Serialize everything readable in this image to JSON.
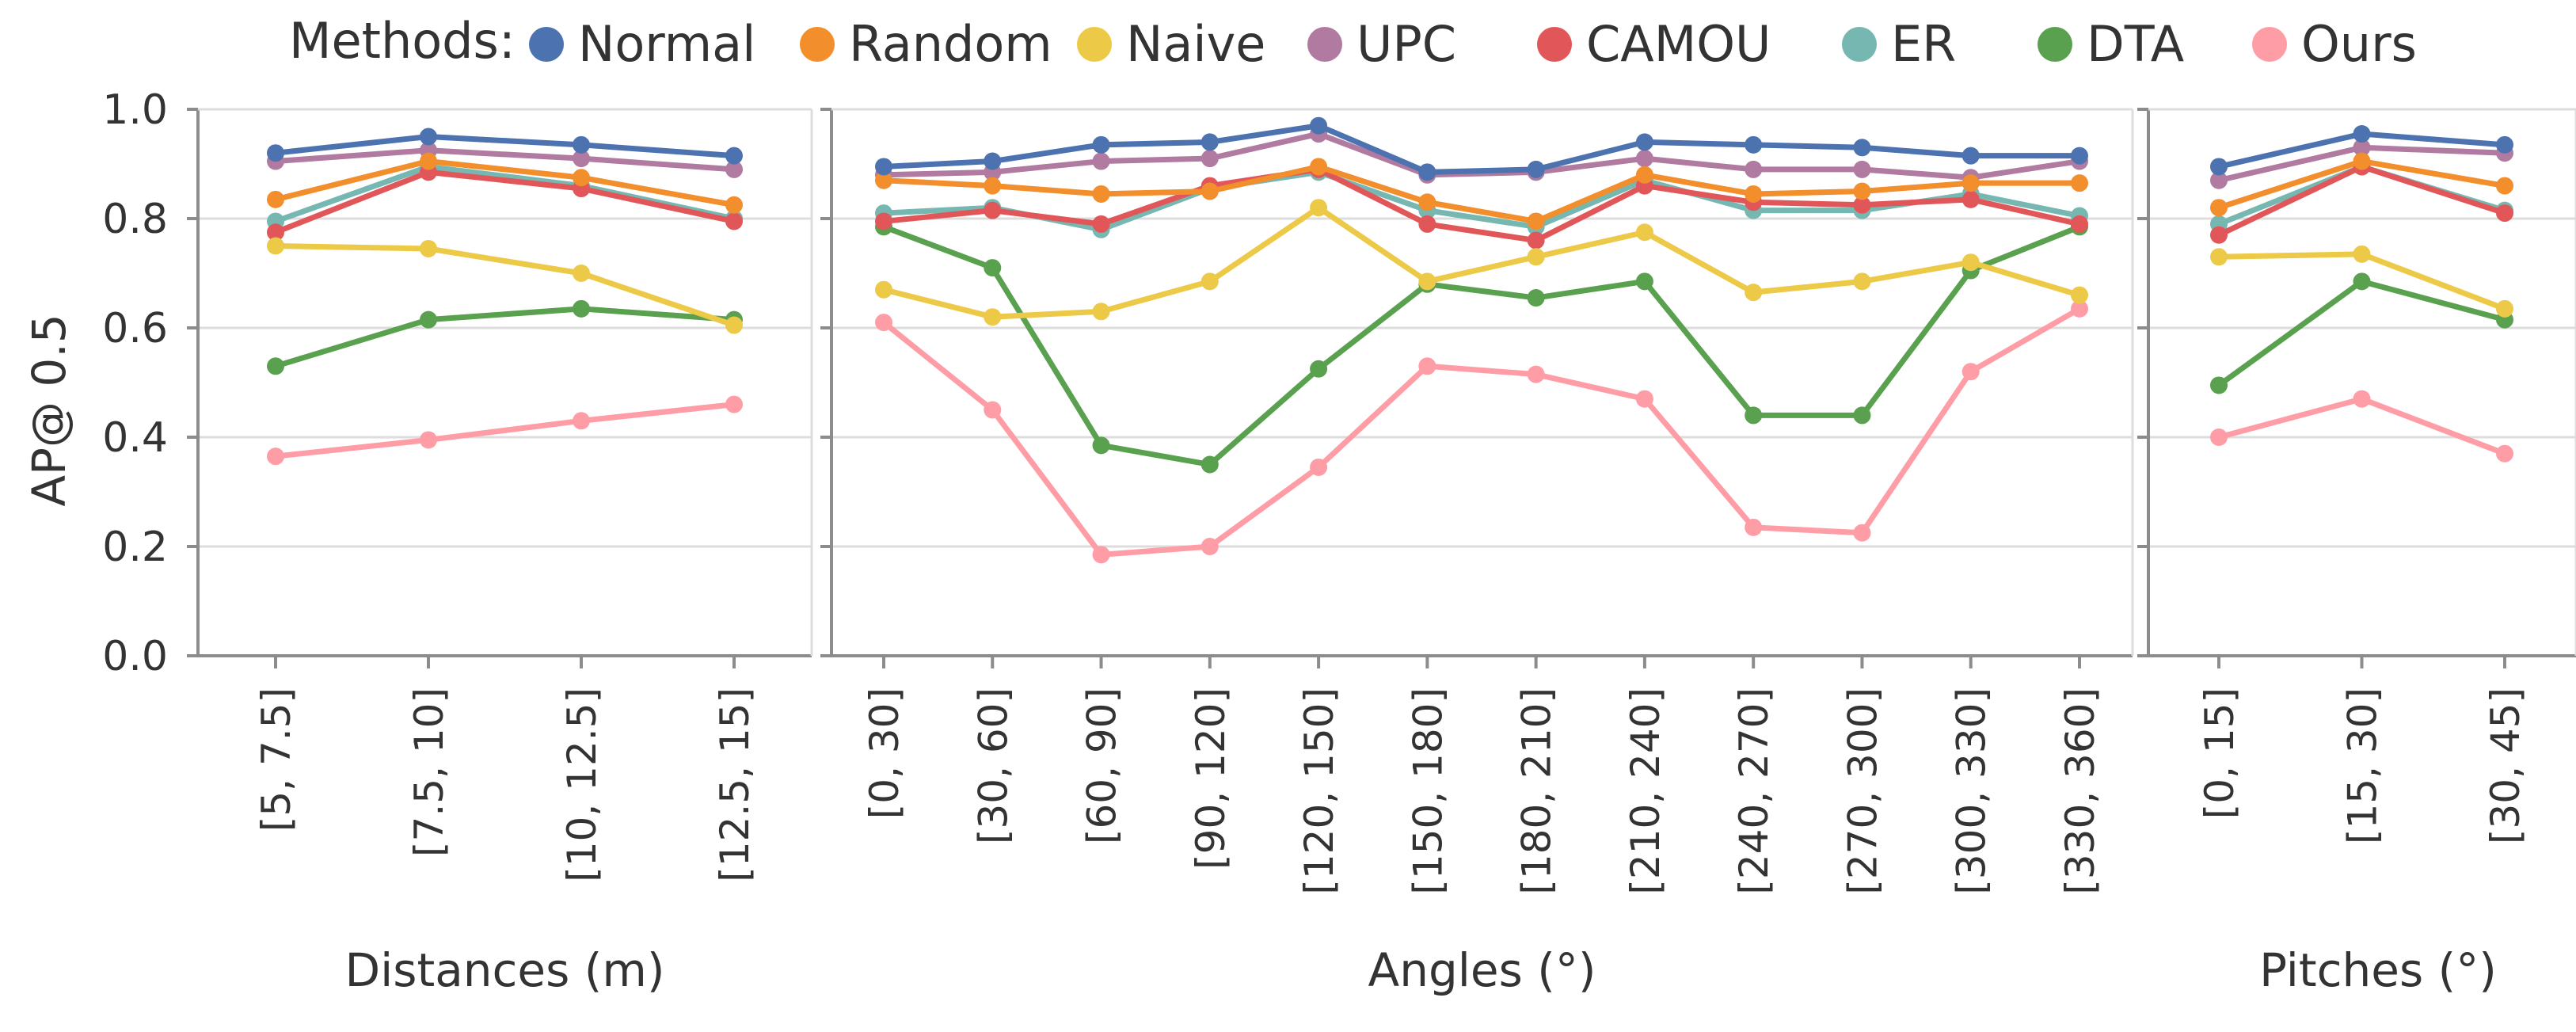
{
  "legend": {
    "title": "Methods:",
    "placement": "top"
  },
  "shared_y": {
    "label": "AP@ 0.5",
    "ylim": [
      0,
      1
    ],
    "ticks": [
      "0.0",
      "0.2",
      "0.4",
      "0.6",
      "0.8",
      "1.0"
    ]
  },
  "series_meta": [
    {
      "name": "Normal",
      "color": "#4c72b0"
    },
    {
      "name": "Random",
      "color": "#f28e2b"
    },
    {
      "name": "Naive",
      "color": "#edc948"
    },
    {
      "name": "UPC",
      "color": "#b07aa1"
    },
    {
      "name": "CAMOU",
      "color": "#e15759"
    },
    {
      "name": "ER",
      "color": "#76b7b2"
    },
    {
      "name": "DTA",
      "color": "#59a14f"
    },
    {
      "name": "Ours",
      "color": "#ff9da7"
    }
  ],
  "chart_data": [
    {
      "type": "line",
      "xlabel": "Distances (m)",
      "ylabel": "AP@ 0.5",
      "ylim": [
        0,
        1
      ],
      "grid": true,
      "categories": [
        "[5, 7.5]",
        "[7.5, 10]",
        "[10, 12.5]",
        "[12.5, 15]"
      ],
      "series": [
        {
          "name": "Normal",
          "values": [
            0.92,
            0.95,
            0.935,
            0.915
          ]
        },
        {
          "name": "Random",
          "values": [
            0.835,
            0.905,
            0.875,
            0.825
          ]
        },
        {
          "name": "Naive",
          "values": [
            0.75,
            0.745,
            0.7,
            0.605
          ]
        },
        {
          "name": "UPC",
          "values": [
            0.905,
            0.925,
            0.91,
            0.89
          ]
        },
        {
          "name": "CAMOU",
          "values": [
            0.775,
            0.885,
            0.855,
            0.795
          ]
        },
        {
          "name": "ER",
          "values": [
            0.795,
            0.895,
            0.86,
            0.8
          ]
        },
        {
          "name": "DTA",
          "values": [
            0.53,
            0.615,
            0.635,
            0.615
          ]
        },
        {
          "name": "Ours",
          "values": [
            0.365,
            0.395,
            0.43,
            0.46
          ]
        }
      ]
    },
    {
      "type": "line",
      "xlabel": "Angles (°)",
      "ylim": [
        0,
        1
      ],
      "grid": true,
      "categories": [
        "[0, 30]",
        "[30, 60]",
        "[60, 90]",
        "[90, 120]",
        "[120, 150]",
        "[150, 180]",
        "[180, 210]",
        "[210, 240]",
        "[240, 270]",
        "[270, 300]",
        "[300, 330]",
        "[330, 360]"
      ],
      "series": [
        {
          "name": "Normal",
          "values": [
            0.895,
            0.905,
            0.935,
            0.94,
            0.97,
            0.885,
            0.89,
            0.94,
            0.935,
            0.93,
            0.915,
            0.915
          ]
        },
        {
          "name": "Random",
          "values": [
            0.87,
            0.86,
            0.845,
            0.85,
            0.895,
            0.83,
            0.795,
            0.88,
            0.845,
            0.85,
            0.865,
            0.865
          ]
        },
        {
          "name": "Naive",
          "values": [
            0.67,
            0.62,
            0.63,
            0.685,
            0.82,
            0.685,
            0.73,
            0.775,
            0.665,
            0.685,
            0.72,
            0.66
          ]
        },
        {
          "name": "UPC",
          "values": [
            0.88,
            0.885,
            0.905,
            0.91,
            0.955,
            0.88,
            0.885,
            0.91,
            0.89,
            0.89,
            0.875,
            0.905
          ]
        },
        {
          "name": "CAMOU",
          "values": [
            0.795,
            0.815,
            0.79,
            0.86,
            0.89,
            0.79,
            0.76,
            0.86,
            0.83,
            0.825,
            0.835,
            0.79
          ]
        },
        {
          "name": "ER",
          "values": [
            0.81,
            0.82,
            0.78,
            0.855,
            0.885,
            0.815,
            0.785,
            0.87,
            0.815,
            0.815,
            0.845,
            0.805
          ]
        },
        {
          "name": "DTA",
          "values": [
            0.785,
            0.71,
            0.385,
            0.35,
            0.525,
            0.68,
            0.655,
            0.685,
            0.44,
            0.44,
            0.705,
            0.785
          ]
        },
        {
          "name": "Ours",
          "values": [
            0.61,
            0.45,
            0.185,
            0.2,
            0.345,
            0.53,
            0.515,
            0.47,
            0.235,
            0.225,
            0.52,
            0.635
          ]
        }
      ]
    },
    {
      "type": "line",
      "xlabel": "Pitches (°)",
      "ylim": [
        0,
        1
      ],
      "grid": true,
      "categories": [
        "[0, 15]",
        "[15, 30]",
        "[30, 45]"
      ],
      "series": [
        {
          "name": "Normal",
          "values": [
            0.895,
            0.955,
            0.935
          ]
        },
        {
          "name": "Random",
          "values": [
            0.82,
            0.905,
            0.86
          ]
        },
        {
          "name": "Naive",
          "values": [
            0.73,
            0.735,
            0.635
          ]
        },
        {
          "name": "UPC",
          "values": [
            0.87,
            0.93,
            0.92
          ]
        },
        {
          "name": "CAMOU",
          "values": [
            0.77,
            0.895,
            0.81
          ]
        },
        {
          "name": "ER",
          "values": [
            0.79,
            0.895,
            0.815
          ]
        },
        {
          "name": "DTA",
          "values": [
            0.495,
            0.685,
            0.615
          ]
        },
        {
          "name": "Ours",
          "values": [
            0.4,
            0.47,
            0.37
          ]
        }
      ]
    }
  ]
}
